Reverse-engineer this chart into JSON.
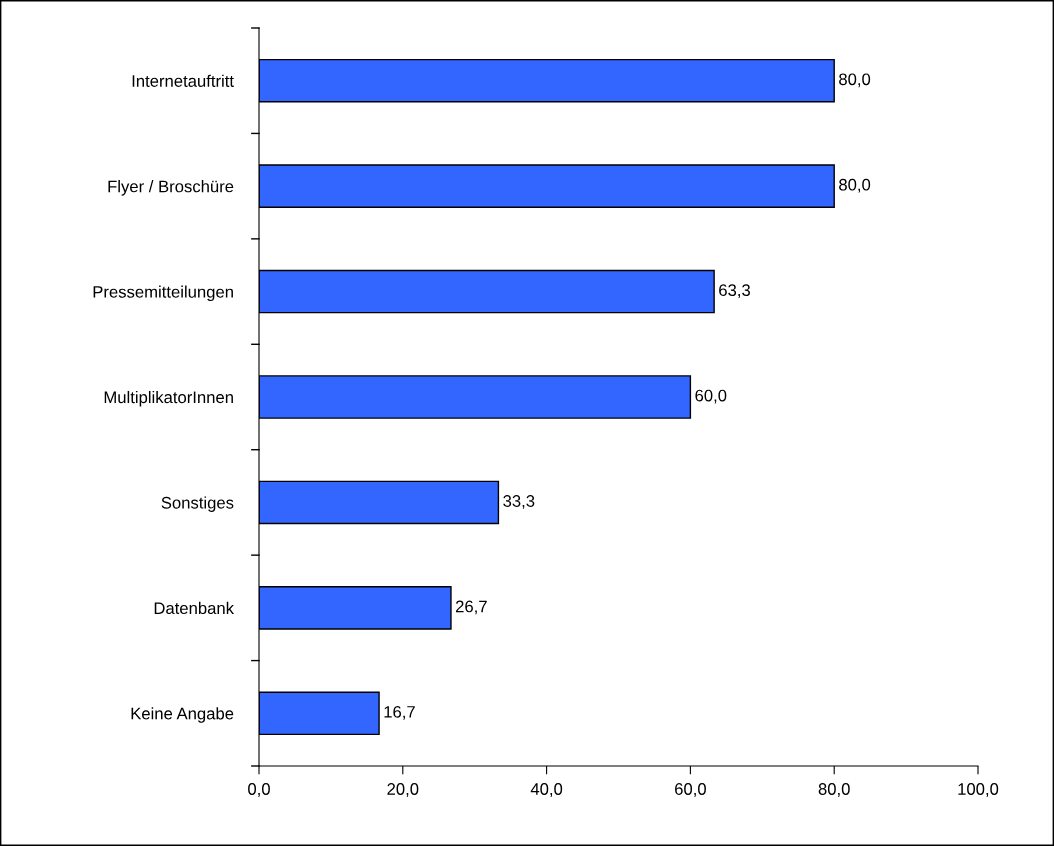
{
  "chart_data": {
    "type": "bar",
    "orientation": "horizontal",
    "categories": [
      "Internetauftritt",
      "Flyer / Broschüre",
      "Pressemitteilungen",
      "MultiplikatorInnen",
      "Sonstiges",
      "Datenbank",
      "Keine Angabe"
    ],
    "values": [
      80.0,
      80.0,
      63.3,
      60.0,
      33.3,
      26.7,
      16.7
    ],
    "value_labels": [
      "80,0",
      "80,0",
      "63,3",
      "60,0",
      "33,3",
      "26,7",
      "16,7"
    ],
    "color": "#3366ff",
    "xlim": [
      0,
      100
    ],
    "xticks": [
      {
        "value": 0,
        "label": "0,0"
      },
      {
        "value": 20,
        "label": "20,0"
      },
      {
        "value": 40,
        "label": "40,0"
      },
      {
        "value": 60,
        "label": "60,0"
      },
      {
        "value": 80,
        "label": "80,0"
      },
      {
        "value": 100,
        "label": "100,0"
      }
    ],
    "grid": false,
    "legend": false
  }
}
